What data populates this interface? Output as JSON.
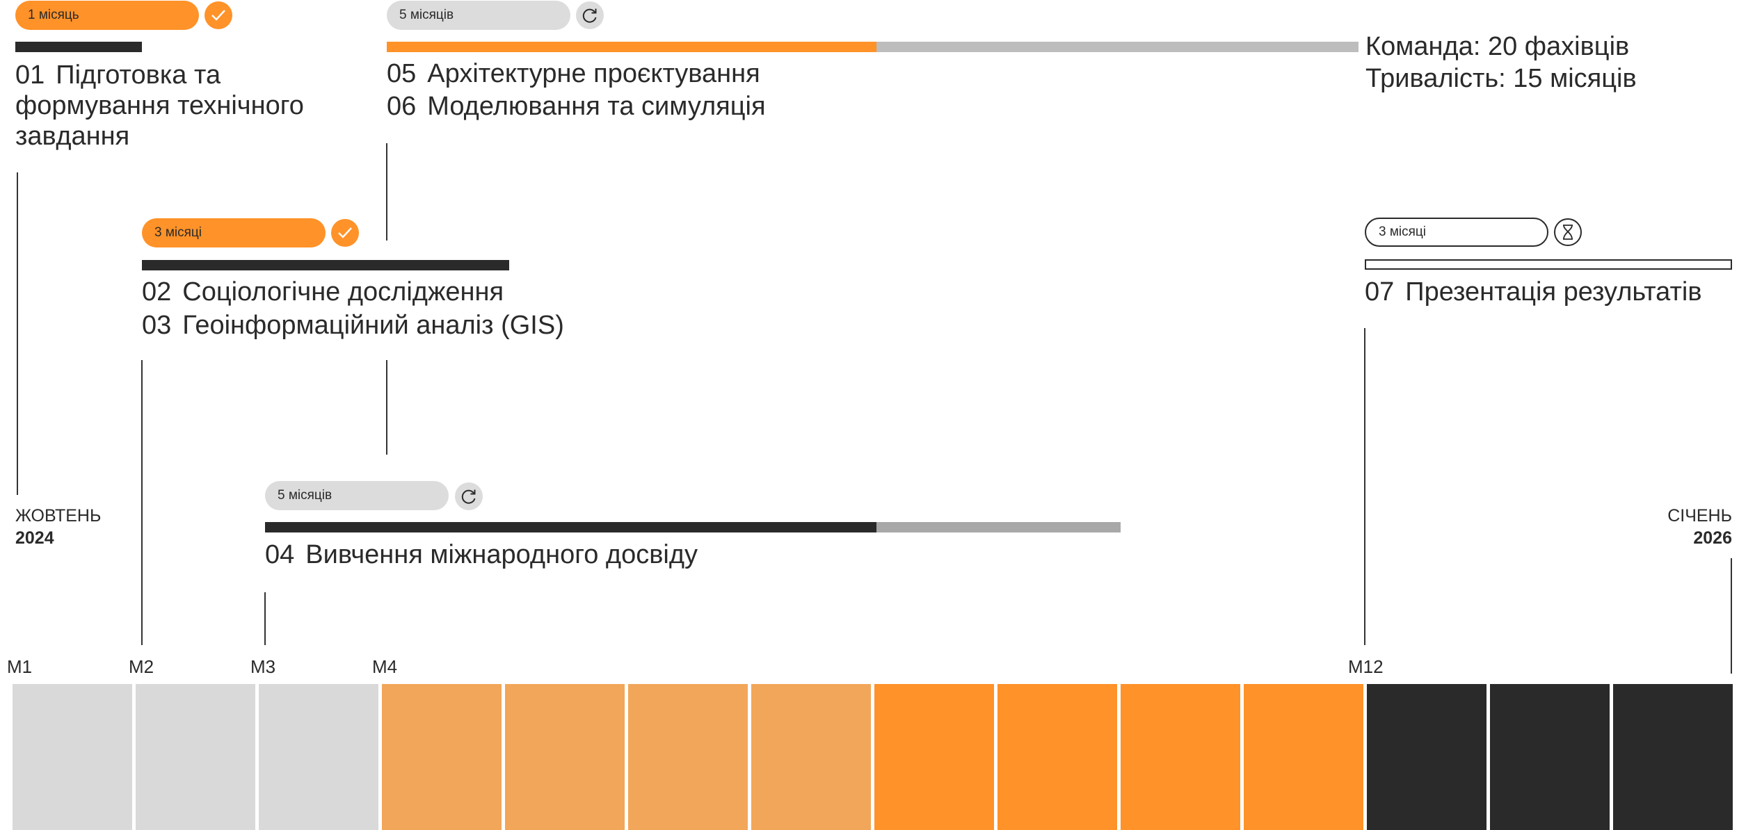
{
  "phases": {
    "p01": {
      "duration": "1 місяць",
      "status_icon": "check-icon",
      "num": "01",
      "title": "Підготовка та формування технічного завдання"
    },
    "p02_03": {
      "duration": "3 місяці",
      "status_icon": "check-icon",
      "items": [
        {
          "num": "02",
          "title": "Соціологічне дослідження"
        },
        {
          "num": "03",
          "title": "Геоінформаційний аналіз (GIS)"
        }
      ]
    },
    "p04": {
      "duration": "5 місяців",
      "status_icon": "refresh-icon",
      "num": "04",
      "title": "Вивчення міжнародного досвіду"
    },
    "p05_06": {
      "duration": "5 місяців",
      "status_icon": "refresh-icon",
      "items": [
        {
          "num": "05",
          "title": "Архітектурне проєктування"
        },
        {
          "num": "06",
          "title": "Моделювання та симуляція"
        }
      ]
    },
    "p07": {
      "duration": "3 місяці",
      "status_icon": "hourglass-icon",
      "num": "07",
      "title": "Презентація результатів"
    }
  },
  "summary": {
    "team_label": "Команда:",
    "team_value": "20 фахівців",
    "duration_label": "Тривалість:",
    "duration_value": "15 місяців"
  },
  "timeline": {
    "start_month": "ЖОВТЕНЬ",
    "start_year": "2024",
    "end_month": "СІЧЕНЬ",
    "end_year": "2026",
    "markers": [
      "M1",
      "M2",
      "M3",
      "M4",
      "M12"
    ]
  },
  "months_colors": [
    "#d9d9d9",
    "#d9d9d9",
    "#d9d9d9",
    "#f2a65a",
    "#f2a65a",
    "#f2a65a",
    "#f2a65a",
    "#ff9228",
    "#ff9228",
    "#ff9228",
    "#ff9228",
    "#2a2a2a",
    "#2a2a2a",
    "#2a2a2a"
  ],
  "colors": {
    "orange": "#ff9228",
    "light_orange": "#f2a65a",
    "dark": "#2a2a2a",
    "gray": "#d9d9d9"
  }
}
